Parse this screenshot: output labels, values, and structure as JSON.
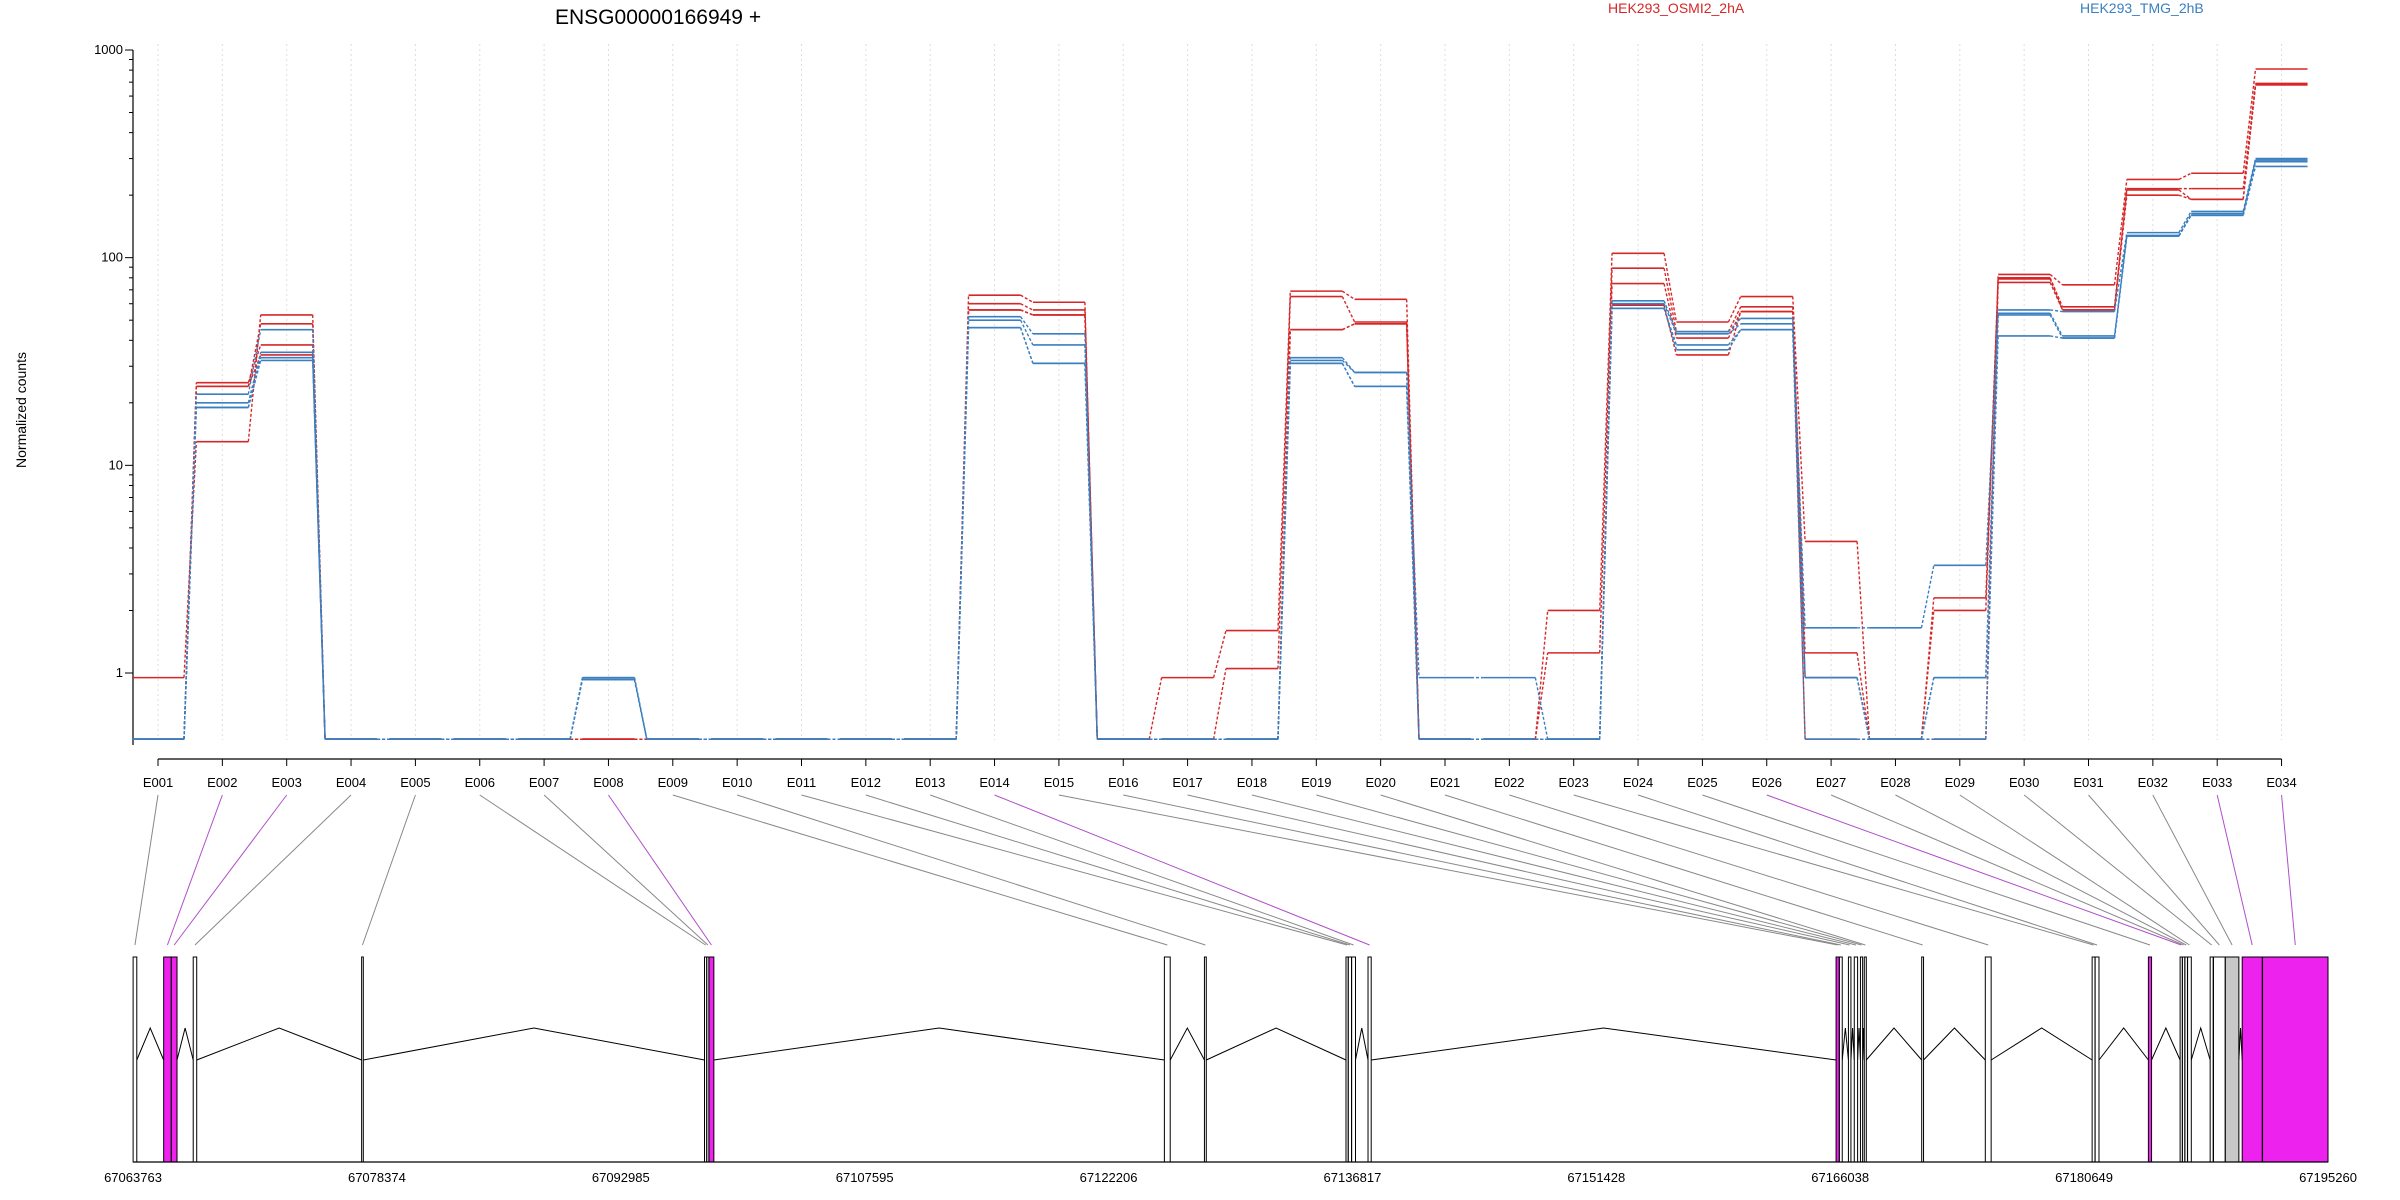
{
  "chart_data": {
    "type": "line",
    "title": "ENSG00000166949 +",
    "ylabel": "Normalized counts",
    "yscale": "log",
    "ylim": [
      0.45,
      1000
    ],
    "y_ticks": [
      "1000",
      "100",
      "10",
      "1"
    ],
    "grid": "vertical dotted lines at exon centers",
    "legend_placement": "top, horizontal",
    "legend": [
      {
        "name": "HEK293_OSMI2_2hA",
        "color": "#d62728"
      },
      {
        "name": "HEK293_TMG_2hB",
        "color": "#3a7fc0"
      }
    ],
    "categories": [
      "E001",
      "E002",
      "E003",
      "E004",
      "E005",
      "E006",
      "E007",
      "E008",
      "E009",
      "E010",
      "E011",
      "E012",
      "E013",
      "E014",
      "E015",
      "E016",
      "E017",
      "E018",
      "E019",
      "E020",
      "E021",
      "E022",
      "E023",
      "E024",
      "E025",
      "E026",
      "E027",
      "E028",
      "E029",
      "E030",
      "E031",
      "E032",
      "E033",
      "E034"
    ],
    "series": [
      {
        "group": 0,
        "values": [
          0.95,
          13,
          53,
          0.48,
          0.48,
          0.48,
          0.48,
          0.48,
          0.48,
          0.48,
          0.48,
          0.48,
          0.48,
          66,
          61,
          0.48,
          0.95,
          1.6,
          69,
          63,
          0.48,
          0.48,
          2.0,
          105,
          49,
          65,
          4.3,
          0.48,
          0.48,
          83,
          74,
          238,
          255,
          810
        ]
      },
      {
        "group": 0,
        "values": [
          0.48,
          24,
          48,
          0.48,
          0.48,
          0.48,
          0.48,
          0.48,
          0.48,
          0.48,
          0.48,
          0.48,
          0.48,
          60,
          56,
          0.48,
          0.48,
          1.05,
          65,
          49,
          0.48,
          0.48,
          1.25,
          89,
          44,
          58,
          1.25,
          0.48,
          2.3,
          80,
          58,
          215,
          215,
          690
        ]
      },
      {
        "group": 0,
        "values": [
          0.48,
          25,
          38,
          0.48,
          0.48,
          0.48,
          0.48,
          0.48,
          0.48,
          0.48,
          0.48,
          0.48,
          0.48,
          56,
          53,
          0.48,
          0.48,
          0.48,
          45,
          48,
          0.48,
          0.48,
          0.48,
          75,
          41,
          55,
          0.95,
          0.48,
          2.0,
          79,
          56,
          212,
          191,
          680
        ]
      },
      {
        "group": 0,
        "values": [
          0.48,
          24,
          34,
          0.48,
          0.48,
          0.48,
          0.48,
          0.48,
          0.48,
          0.48,
          0.48,
          0.48,
          0.48,
          56,
          53,
          0.48,
          0.48,
          0.48,
          45,
          48,
          0.48,
          0.48,
          0.48,
          59,
          34,
          55,
          0.48,
          0.48,
          0.48,
          76,
          56,
          200,
          191,
          680
        ]
      },
      {
        "group": 1,
        "values": [
          0.48,
          22,
          45,
          0.48,
          0.48,
          0.48,
          0.48,
          0.95,
          0.48,
          0.48,
          0.48,
          0.48,
          0.48,
          52,
          43,
          0.48,
          0.48,
          0.48,
          33,
          28,
          0.95,
          0.95,
          0.48,
          62,
          44,
          51,
          1.65,
          1.65,
          3.3,
          56,
          55,
          132,
          167,
          300
        ]
      },
      {
        "group": 1,
        "values": [
          0.48,
          20,
          35,
          0.48,
          0.48,
          0.48,
          0.48,
          0.95,
          0.48,
          0.48,
          0.48,
          0.48,
          0.48,
          50,
          38,
          0.48,
          0.48,
          0.48,
          32,
          28,
          0.48,
          0.48,
          0.48,
          60,
          43,
          48,
          0.95,
          0.48,
          0.95,
          54,
          42,
          128,
          163,
          295
        ]
      },
      {
        "group": 1,
        "values": [
          0.48,
          19,
          33,
          0.48,
          0.48,
          0.48,
          0.48,
          0.93,
          0.48,
          0.48,
          0.48,
          0.48,
          0.48,
          46,
          31,
          0.48,
          0.48,
          0.48,
          31,
          24,
          0.48,
          0.48,
          0.48,
          57,
          38,
          45,
          0.95,
          0.48,
          0.95,
          53,
          41,
          127,
          160,
          290
        ]
      },
      {
        "group": 1,
        "values": [
          0.48,
          19,
          32,
          0.48,
          0.48,
          0.48,
          0.48,
          0.93,
          0.48,
          0.48,
          0.48,
          0.48,
          0.48,
          46,
          31,
          0.48,
          0.48,
          0.48,
          31,
          24,
          0.48,
          0.48,
          0.48,
          57,
          36,
          45,
          0.48,
          0.48,
          0.48,
          42,
          41,
          127,
          160,
          275
        ]
      }
    ]
  },
  "gene_model": {
    "coordinate_ticks": [
      "67063763",
      "67078374",
      "67092985",
      "67107595",
      "67122206",
      "67136817",
      "67151428",
      "67166038",
      "67180649",
      "67195260"
    ],
    "exon_highlight_color": "#ee22ee",
    "exons": [
      {
        "id": "E001",
        "start": 67063770,
        "end": 67063990,
        "style": "plain"
      },
      {
        "id": "E002",
        "start": 67065600,
        "end": 67066050,
        "style": "highlight"
      },
      {
        "id": "E003",
        "start": 67066060,
        "end": 67066400,
        "style": "highlight"
      },
      {
        "id": "E004",
        "start": 67067370,
        "end": 67067580,
        "style": "plain"
      },
      {
        "id": "E005",
        "start": 67077460,
        "end": 67077560,
        "style": "plain"
      },
      {
        "id": "E006",
        "start": 67098000,
        "end": 67098130,
        "style": "plain"
      },
      {
        "id": "E007",
        "start": 67098140,
        "end": 67098260,
        "style": "plain"
      },
      {
        "id": "E008",
        "start": 67098270,
        "end": 67098560,
        "style": "highlight"
      },
      {
        "id": "E009",
        "start": 67125550,
        "end": 67125900,
        "style": "plain"
      },
      {
        "id": "E010",
        "start": 67127950,
        "end": 67128060,
        "style": "plain"
      },
      {
        "id": "E011",
        "start": 67136430,
        "end": 67136560,
        "style": "plain"
      },
      {
        "id": "E012",
        "start": 67136570,
        "end": 67136760,
        "style": "plain"
      },
      {
        "id": "E013",
        "start": 67136770,
        "end": 67137000,
        "style": "plain"
      },
      {
        "id": "E014",
        "start": 67137750,
        "end": 67137940,
        "style": "plain"
      },
      {
        "id": "E015",
        "start": 67165790,
        "end": 67165980,
        "style": "highlight"
      },
      {
        "id": "E016",
        "start": 67165990,
        "end": 67166160,
        "style": "plain"
      },
      {
        "id": "E017",
        "start": 67166530,
        "end": 67166680,
        "style": "plain"
      },
      {
        "id": "E018",
        "start": 67166880,
        "end": 67167080,
        "style": "plain"
      },
      {
        "id": "E019",
        "start": 67167250,
        "end": 67167380,
        "style": "plain"
      },
      {
        "id": "E020",
        "start": 67167480,
        "end": 67167600,
        "style": "plain"
      },
      {
        "id": "E021",
        "start": 67170920,
        "end": 67171030,
        "style": "plain"
      },
      {
        "id": "E022",
        "start": 67174730,
        "end": 67175080,
        "style": "plain"
      },
      {
        "id": "E023",
        "start": 67181130,
        "end": 67181300,
        "style": "plain"
      },
      {
        "id": "E024",
        "start": 67181310,
        "end": 67181540,
        "style": "plain"
      },
      {
        "id": "E025",
        "start": 67184500,
        "end": 67184690,
        "style": "highlight"
      },
      {
        "id": "E026",
        "start": 67186400,
        "end": 67186530,
        "style": "plain"
      },
      {
        "id": "E027",
        "start": 67186540,
        "end": 67186680,
        "style": "plain"
      },
      {
        "id": "E028",
        "start": 67186690,
        "end": 67186840,
        "style": "plain"
      },
      {
        "id": "E029",
        "start": 67186850,
        "end": 67187070,
        "style": "plain"
      },
      {
        "id": "E030",
        "start": 67188200,
        "end": 67188380,
        "style": "plain"
      },
      {
        "id": "E031",
        "start": 67188400,
        "end": 67189100,
        "style": "plain"
      },
      {
        "id": "E032",
        "start": 67189110,
        "end": 67189920,
        "style": "grey"
      },
      {
        "id": "E033",
        "start": 67190120,
        "end": 67191320,
        "style": "highlight"
      },
      {
        "id": "E034",
        "start": 67191340,
        "end": 67195260,
        "style": "highlight"
      }
    ],
    "connector_highlight": [
      "E002",
      "E003",
      "E008",
      "E014",
      "E026",
      "E033",
      "E034"
    ],
    "junctions": [
      [
        67063990,
        67065600
      ],
      [
        67066400,
        67067370
      ],
      [
        67067580,
        67077460
      ],
      [
        67077560,
        67098000
      ],
      [
        67098560,
        67125550
      ],
      [
        67125900,
        67127950
      ],
      [
        67128060,
        67136430
      ],
      [
        67137000,
        67137750
      ],
      [
        67137940,
        67165790
      ],
      [
        67166160,
        67166530
      ],
      [
        67166680,
        67166880
      ],
      [
        67167080,
        67167250
      ],
      [
        67167380,
        67167480
      ],
      [
        67167600,
        67170920
      ],
      [
        67171030,
        67174730
      ],
      [
        67175080,
        67181130
      ],
      [
        67181540,
        67184500
      ],
      [
        67184690,
        67186400
      ],
      [
        67187070,
        67188200
      ],
      [
        67189920,
        67190120
      ]
    ]
  }
}
